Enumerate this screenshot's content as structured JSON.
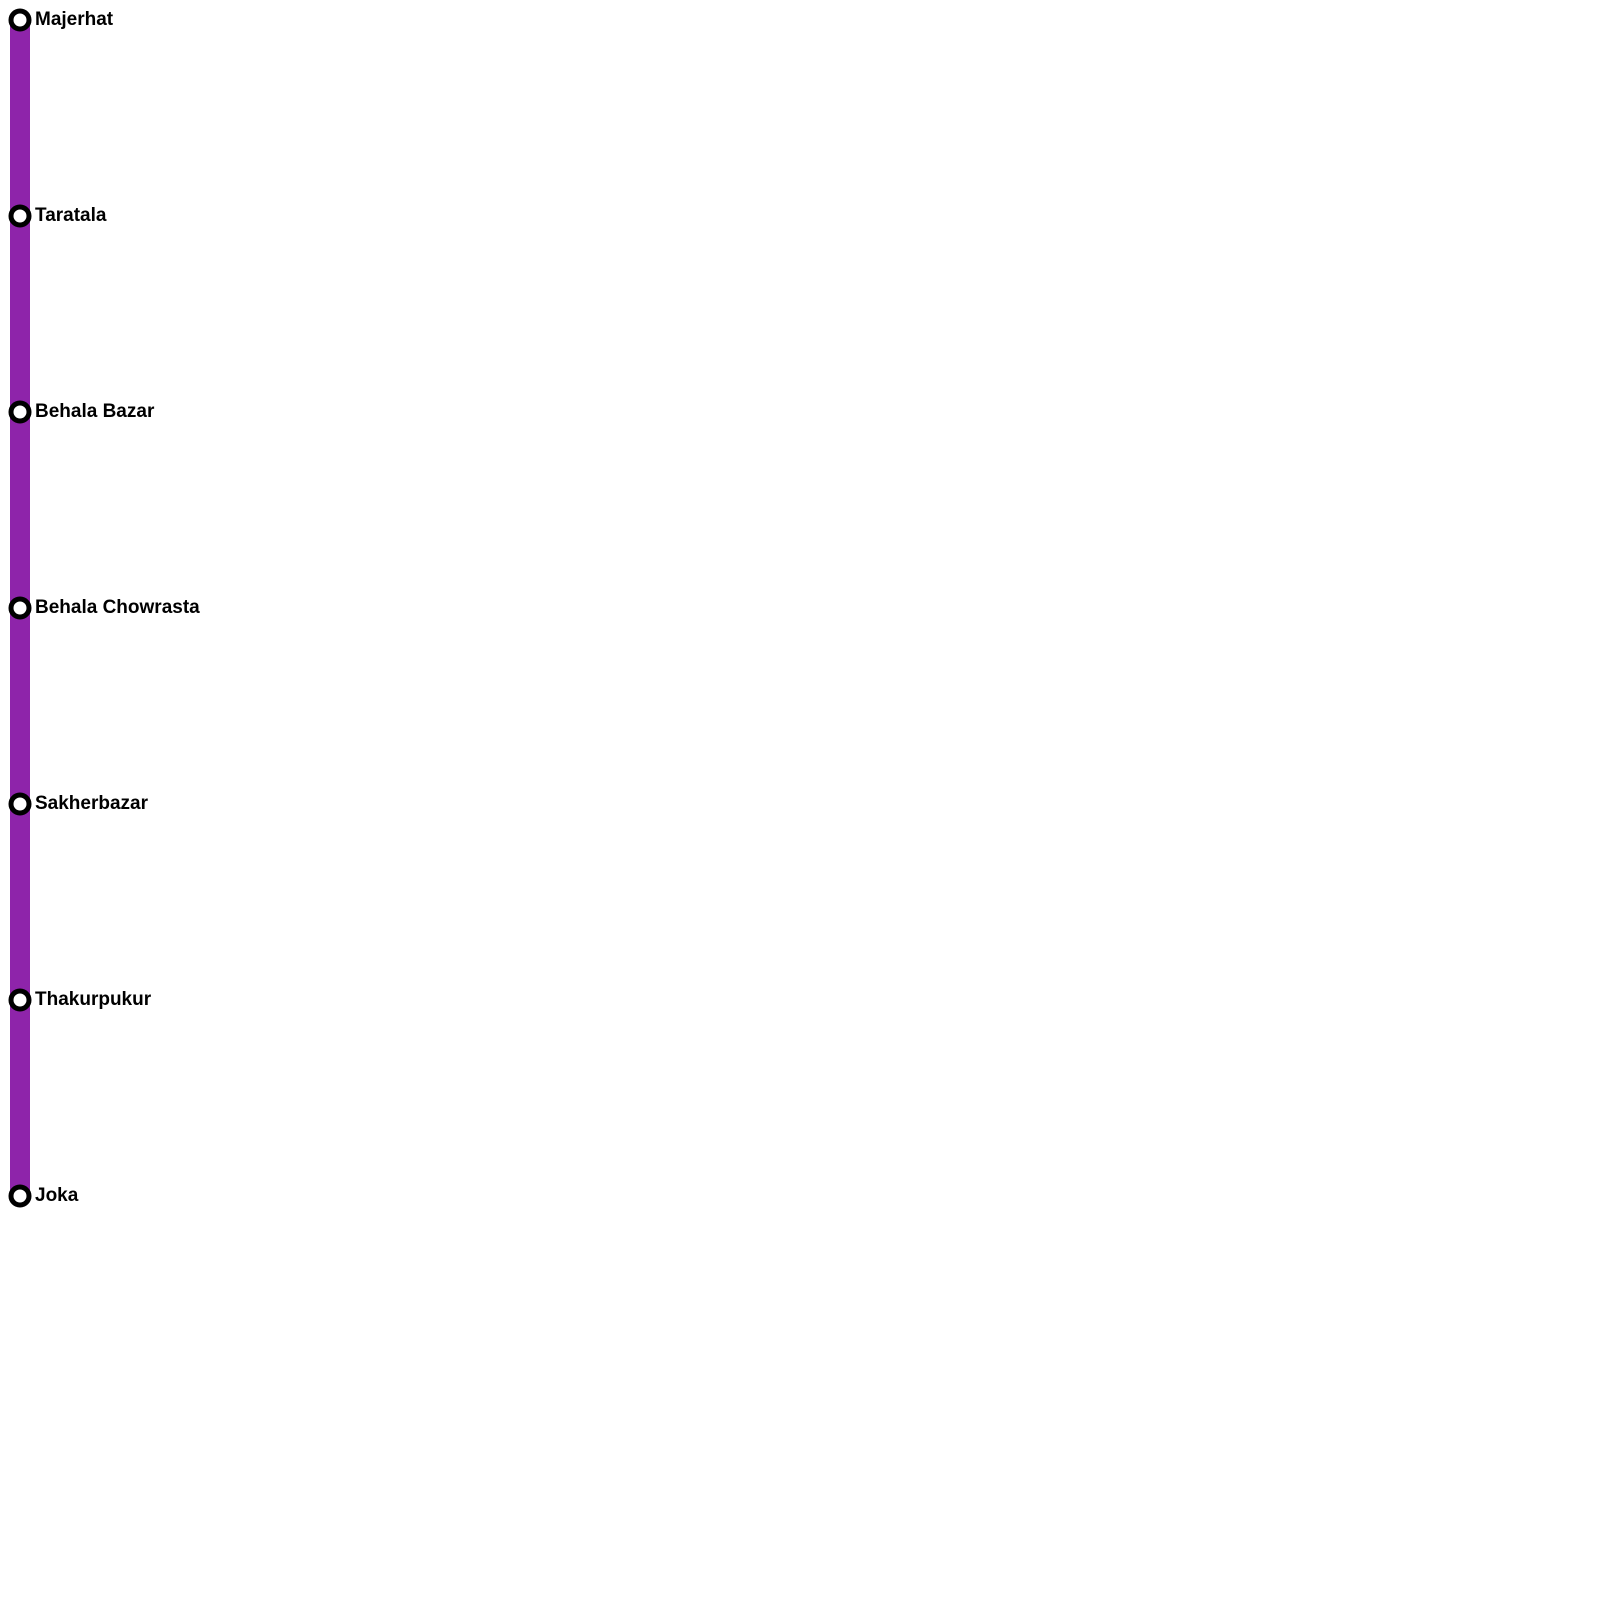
{
  "line": {
    "color": "#8e24aa"
  },
  "station_style": {
    "ring_color": "#000000",
    "fill_color": "#ffffff"
  },
  "stations": [
    {
      "name": "Majerhat"
    },
    {
      "name": "Taratala"
    },
    {
      "name": "Behala Bazar"
    },
    {
      "name": "Behala Chowrasta"
    },
    {
      "name": "Sakherbazar"
    },
    {
      "name": "Thakurpukur"
    },
    {
      "name": "Joka"
    }
  ]
}
